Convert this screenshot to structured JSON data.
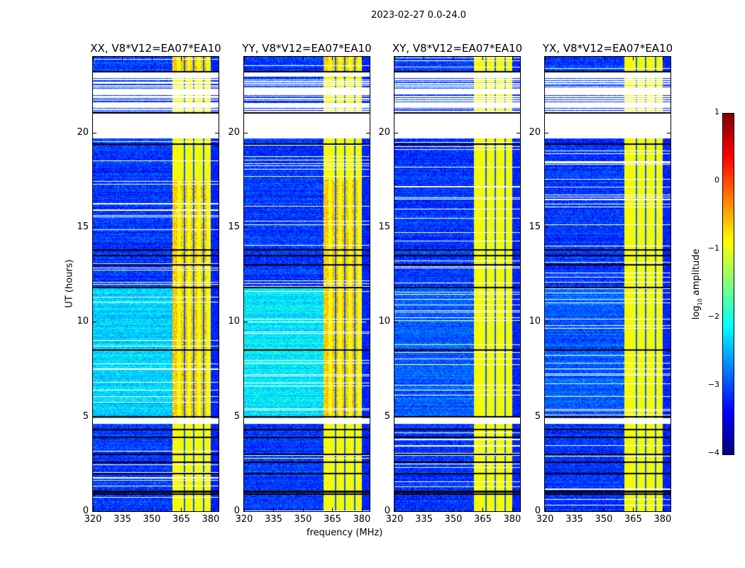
{
  "chart_data": {
    "type": "heatmap",
    "title": "2023-02-27 0.0-24.0",
    "xlabel": "frequency (MHz)",
    "ylabel": "UT (hours)",
    "xlim": [
      320,
      384
    ],
    "ylim": [
      0,
      24
    ],
    "xticks": [
      320,
      335,
      350,
      365,
      380
    ],
    "yticks": [
      0,
      5,
      10,
      15,
      20
    ],
    "panels": [
      {
        "title": "XX, V8*V12=EA07*EA10",
        "pol": "XX",
        "mid_day_level": -2.3
      },
      {
        "title": "YY, V8*V12=EA07*EA10",
        "pol": "YY",
        "mid_day_level": -2.2
      },
      {
        "title": "XY, V8*V12=EA07*EA10",
        "pol": "XY",
        "mid_day_level": -2.9
      },
      {
        "title": "YX, V8*V12=EA07*EA10",
        "pol": "YX",
        "mid_day_level": -2.9
      }
    ],
    "background_level": -3.1,
    "rfi_band_mhz": [
      360.5,
      380
    ],
    "rfi_level": -0.9,
    "rfi_notches_mhz": [
      366.5,
      371.5,
      376.5
    ],
    "flagged_hours": [
      [
        19.7,
        21.05
      ],
      [
        22.95,
        23.2
      ],
      [
        22.0,
        22.3
      ],
      [
        21.3,
        21.55
      ],
      [
        4.6,
        4.9
      ]
    ],
    "dark_rows_hours": [
      0.9,
      1.0,
      1.05,
      2.0,
      2.6,
      3.0,
      3.9,
      4.3,
      5.0,
      8.5,
      11.8,
      13.0,
      13.5,
      13.8,
      19.4,
      21.05,
      23.2
    ],
    "colorbar": {
      "label_prefix": "log",
      "label_sub": "10",
      "label_suffix": " amplitude",
      "range": [
        -4,
        1
      ],
      "ticks": [
        "1",
        "0",
        "−1",
        "−2",
        "−3",
        "−4"
      ],
      "colormap": "jet"
    }
  }
}
